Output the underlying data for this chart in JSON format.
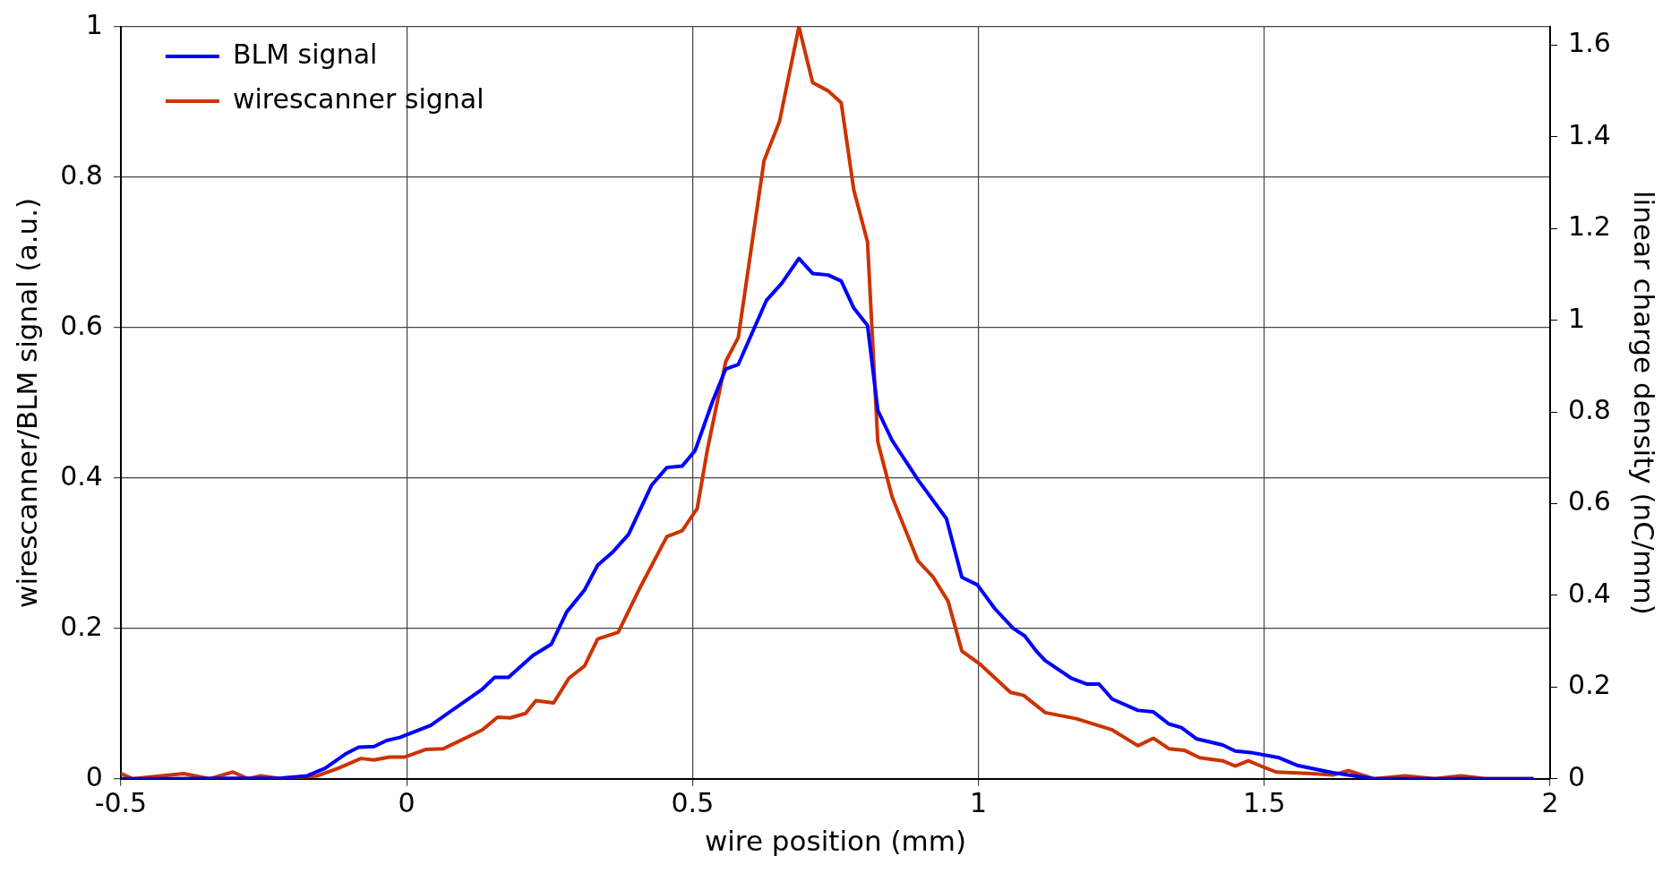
{
  "chart_data": {
    "type": "line",
    "xlabel": "wire position (mm)",
    "ylabel": "wirescanner/BLM signal (a.u.)",
    "y2label": "linear charge density (nC/mm)",
    "xlim": [
      -0.5,
      2
    ],
    "xticks": [
      -0.5,
      0,
      0.5,
      1,
      1.5,
      2
    ],
    "ylim": [
      0,
      1
    ],
    "yticks": [
      0,
      0.2,
      0.4,
      0.6,
      0.8,
      1
    ],
    "y2lim": [
      0,
      1.64
    ],
    "y2ticks": [
      0,
      0.2,
      0.4,
      0.6,
      0.8,
      1,
      1.2,
      1.4,
      1.6
    ],
    "grid": true,
    "legend": "top left",
    "marker": "none",
    "line_style": "solid",
    "series": [
      {
        "name": "BLM signal",
        "color": "#0000ff",
        "x": [
          -0.5,
          -0.426,
          -0.219,
          -0.174,
          -0.143,
          -0.107,
          -0.084,
          -0.057,
          -0.035,
          -0.012,
          0.042,
          0.096,
          0.132,
          0.154,
          0.178,
          0.221,
          0.253,
          0.28,
          0.311,
          0.334,
          0.361,
          0.388,
          0.428,
          0.455,
          0.482,
          0.504,
          0.508,
          0.535,
          0.558,
          0.58,
          0.629,
          0.656,
          0.686,
          0.71,
          0.737,
          0.76,
          0.782,
          0.806,
          0.824,
          0.849,
          0.894,
          0.944,
          0.971,
          0.998,
          1.029,
          1.061,
          1.081,
          1.101,
          1.117,
          1.162,
          1.189,
          1.211,
          1.234,
          1.279,
          1.306,
          1.333,
          1.355,
          1.382,
          1.427,
          1.449,
          1.476,
          1.526,
          1.557,
          1.62,
          1.692,
          1.971
        ],
        "values": [
          0,
          0,
          0.001,
          0.004,
          0.014,
          0.033,
          0.042,
          0.043,
          0.051,
          0.055,
          0.071,
          0.1,
          0.119,
          0.135,
          0.135,
          0.164,
          0.179,
          0.222,
          0.251,
          0.284,
          0.302,
          0.325,
          0.39,
          0.414,
          0.416,
          0.436,
          0.444,
          0.502,
          0.545,
          0.551,
          0.636,
          0.659,
          0.692,
          0.672,
          0.67,
          0.662,
          0.626,
          0.603,
          0.49,
          0.45,
          0.398,
          0.346,
          0.268,
          0.258,
          0.226,
          0.2,
          0.19,
          0.17,
          0.157,
          0.134,
          0.126,
          0.126,
          0.106,
          0.091,
          0.089,
          0.073,
          0.068,
          0.053,
          0.045,
          0.037,
          0.035,
          0.028,
          0.018,
          0.008,
          0,
          0
        ]
      },
      {
        "name": "wirescanner signal",
        "color": "#cc3300",
        "x": [
          -0.5,
          -0.479,
          -0.39,
          -0.345,
          -0.304,
          -0.277,
          -0.255,
          -0.219,
          -0.156,
          -0.12,
          -0.08,
          -0.057,
          -0.03,
          -0.003,
          0.033,
          0.064,
          0.132,
          0.159,
          0.181,
          0.208,
          0.226,
          0.257,
          0.284,
          0.311,
          0.334,
          0.37,
          0.41,
          0.455,
          0.482,
          0.504,
          0.508,
          0.526,
          0.558,
          0.58,
          0.625,
          0.652,
          0.686,
          0.71,
          0.737,
          0.76,
          0.782,
          0.806,
          0.824,
          0.849,
          0.894,
          0.921,
          0.947,
          0.971,
          1.002,
          1.056,
          1.079,
          1.117,
          1.171,
          1.234,
          1.279,
          1.306,
          1.333,
          1.36,
          1.387,
          1.427,
          1.449,
          1.472,
          1.494,
          1.521,
          1.584,
          1.62,
          1.647,
          1.692,
          1.746,
          1.798,
          1.844,
          1.887,
          1.971
        ],
        "values": [
          0.007,
          0,
          0.007,
          0,
          0.009,
          0,
          0.004,
          0,
          0.004,
          0.014,
          0.027,
          0.025,
          0.029,
          0.029,
          0.039,
          0.04,
          0.065,
          0.082,
          0.081,
          0.087,
          0.104,
          0.101,
          0.134,
          0.15,
          0.186,
          0.195,
          0.257,
          0.322,
          0.33,
          0.355,
          0.359,
          0.438,
          0.555,
          0.587,
          0.822,
          0.874,
          1,
          0.926,
          0.915,
          0.899,
          0.783,
          0.714,
          0.448,
          0.375,
          0.29,
          0.268,
          0.236,
          0.17,
          0.153,
          0.115,
          0.111,
          0.088,
          0.08,
          0.065,
          0.044,
          0.054,
          0.04,
          0.038,
          0.028,
          0.024,
          0.017,
          0.024,
          0.017,
          0.009,
          0.007,
          0.005,
          0.011,
          0,
          0.004,
          0,
          0.004,
          0,
          0
        ]
      }
    ]
  }
}
